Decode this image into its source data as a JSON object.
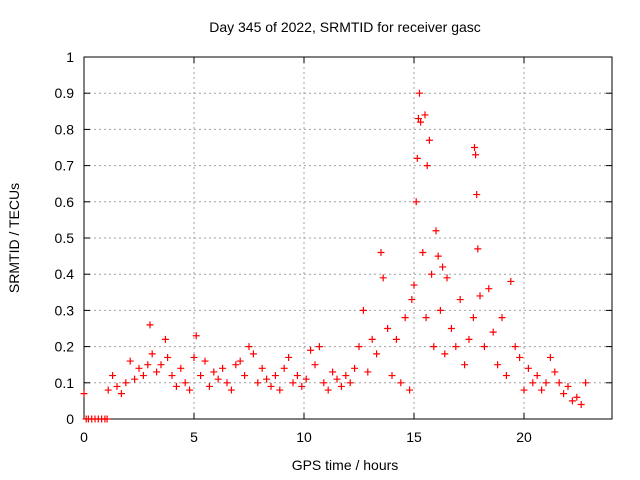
{
  "chart_data": {
    "type": "scatter",
    "title": "Day 345 of 2022, SRMTID for receiver gasc",
    "xlabel": "GPS time / hours",
    "ylabel": "SRMTID / TECUs",
    "xlim": [
      0,
      24
    ],
    "ylim": [
      0,
      1
    ],
    "xticks": [
      0,
      5,
      10,
      15,
      20
    ],
    "yticks": [
      0,
      0.1,
      0.2,
      0.3,
      0.4,
      0.5,
      0.6,
      0.7,
      0.8,
      0.9,
      1
    ],
    "xtick_labels": [
      "0",
      "5",
      "10",
      "15",
      "20"
    ],
    "ytick_labels": [
      "0",
      "0.1",
      "0.2",
      "0.3",
      "0.4",
      "0.5",
      "0.6",
      "0.7",
      "0.8",
      "0.9",
      "1"
    ],
    "grid": true,
    "marker": "+",
    "marker_color": "#ff0000",
    "series": [
      {
        "name": "SRMTID",
        "x": [
          0.0,
          0.1,
          0.2,
          0.35,
          0.5,
          0.65,
          0.8,
          0.95,
          1.05,
          1.1,
          1.3,
          1.5,
          1.7,
          1.9,
          2.1,
          2.3,
          2.5,
          2.7,
          2.9,
          3.0,
          3.1,
          3.3,
          3.5,
          3.7,
          3.8,
          4.0,
          4.2,
          4.4,
          4.6,
          4.8,
          5.0,
          5.1,
          5.3,
          5.5,
          5.7,
          5.9,
          6.1,
          6.3,
          6.5,
          6.7,
          6.9,
          7.1,
          7.3,
          7.5,
          7.7,
          7.9,
          8.1,
          8.3,
          8.5,
          8.7,
          8.9,
          9.1,
          9.3,
          9.5,
          9.7,
          9.9,
          10.1,
          10.3,
          10.5,
          10.7,
          10.9,
          11.1,
          11.3,
          11.5,
          11.7,
          11.9,
          12.1,
          12.3,
          12.5,
          12.7,
          12.9,
          13.1,
          13.3,
          13.5,
          13.6,
          13.8,
          14.0,
          14.2,
          14.4,
          14.6,
          14.8,
          14.9,
          15.0,
          15.1,
          15.15,
          15.2,
          15.25,
          15.3,
          15.4,
          15.5,
          15.55,
          15.6,
          15.7,
          15.8,
          15.9,
          16.0,
          16.1,
          16.2,
          16.3,
          16.4,
          16.5,
          16.7,
          16.9,
          17.1,
          17.3,
          17.5,
          17.7,
          17.75,
          17.8,
          17.85,
          17.9,
          18.0,
          18.2,
          18.4,
          18.6,
          18.8,
          19.0,
          19.2,
          19.4,
          19.6,
          19.8,
          20.0,
          20.2,
          20.4,
          20.6,
          20.8,
          21.0,
          21.2,
          21.4,
          21.6,
          21.8,
          22.0,
          22.2,
          22.4,
          22.6,
          22.8
        ],
        "y": [
          0.07,
          0.0,
          0.0,
          0.0,
          0.0,
          0.0,
          0.0,
          0.0,
          0.0,
          0.08,
          0.12,
          0.09,
          0.07,
          0.1,
          0.16,
          0.11,
          0.14,
          0.12,
          0.15,
          0.26,
          0.18,
          0.13,
          0.15,
          0.22,
          0.17,
          0.12,
          0.09,
          0.14,
          0.1,
          0.08,
          0.17,
          0.23,
          0.12,
          0.16,
          0.09,
          0.13,
          0.11,
          0.14,
          0.1,
          0.08,
          0.15,
          0.16,
          0.12,
          0.2,
          0.18,
          0.1,
          0.14,
          0.11,
          0.09,
          0.12,
          0.08,
          0.14,
          0.17,
          0.1,
          0.12,
          0.09,
          0.11,
          0.19,
          0.15,
          0.2,
          0.1,
          0.08,
          0.13,
          0.11,
          0.09,
          0.12,
          0.1,
          0.14,
          0.2,
          0.3,
          0.13,
          0.22,
          0.18,
          0.46,
          0.39,
          0.25,
          0.12,
          0.22,
          0.1,
          0.28,
          0.08,
          0.33,
          0.37,
          0.6,
          0.72,
          0.83,
          0.9,
          0.82,
          0.46,
          0.84,
          0.28,
          0.7,
          0.77,
          0.4,
          0.2,
          0.52,
          0.45,
          0.3,
          0.42,
          0.18,
          0.39,
          0.25,
          0.2,
          0.33,
          0.15,
          0.22,
          0.28,
          0.75,
          0.73,
          0.62,
          0.47,
          0.34,
          0.2,
          0.36,
          0.24,
          0.15,
          0.28,
          0.12,
          0.38,
          0.2,
          0.17,
          0.08,
          0.14,
          0.1,
          0.12,
          0.08,
          0.1,
          0.17,
          0.13,
          0.1,
          0.07,
          0.09,
          0.05,
          0.06,
          0.04,
          0.1
        ]
      }
    ]
  }
}
